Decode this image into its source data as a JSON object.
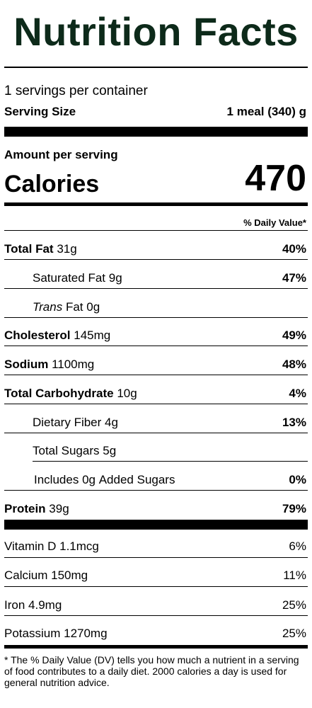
{
  "title": "Nutrition Facts",
  "servings_per_container": "1 servings per container",
  "serving_size_label": "Serving Size",
  "serving_size_value": "1 meal (340) g",
  "amount_per_serving": "Amount per serving",
  "calories_label": "Calories",
  "calories_value": "470",
  "daily_value_header": "% Daily Value*",
  "nutrients": {
    "total_fat": {
      "name": "Total Fat",
      "amount": "31g",
      "dv": "40%"
    },
    "saturated_fat": {
      "name": "Saturated Fat",
      "amount": "9g",
      "dv": "47%"
    },
    "trans_fat": {
      "name_italic": "Trans",
      "name": "Fat",
      "amount": "0g"
    },
    "cholesterol": {
      "name": "Cholesterol",
      "amount": "145mg",
      "dv": "49%"
    },
    "sodium": {
      "name": "Sodium",
      "amount": "1100mg",
      "dv": "48%"
    },
    "total_carbohydrate": {
      "name": "Total Carbohydrate",
      "amount": "10g",
      "dv": "4%"
    },
    "dietary_fiber": {
      "name": "Dietary Fiber",
      "amount": "4g",
      "dv": "13%"
    },
    "total_sugars": {
      "name": "Total Sugars",
      "amount": "5g"
    },
    "added_sugars": {
      "prefix": "Includes",
      "amount": "0g",
      "suffix": "Added Sugars",
      "dv": "0%"
    },
    "protein": {
      "name": "Protein",
      "amount": "39g",
      "dv": "79%"
    }
  },
  "vitamins": {
    "vitamin_d": {
      "name": "Vitamin D",
      "amount": "1.1mcg",
      "dv": "6%"
    },
    "calcium": {
      "name": "Calcium",
      "amount": "150mg",
      "dv": "11%"
    },
    "iron": {
      "name": "Iron",
      "amount": "4.9mg",
      "dv": "25%"
    },
    "potassium": {
      "name": "Potassium",
      "amount": "1270mg",
      "dv": "25%"
    }
  },
  "footnote": "* The % Daily Value (DV) tells you how much a nutrient in a serving of food contributes to a daily diet. 2000 calories a day is used for general nutrition advice.",
  "colors": {
    "title": "#0d2a1a",
    "rule": "#000000"
  }
}
